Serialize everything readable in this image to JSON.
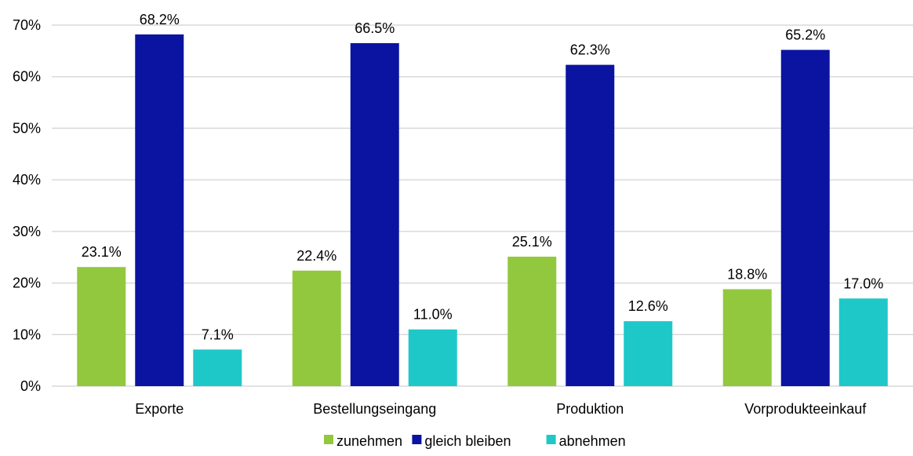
{
  "chart_data": {
    "type": "bar",
    "categories": [
      "Exporte",
      "Bestellungseingang",
      "Produktion",
      "Vorprodukteeinkauf"
    ],
    "series": [
      {
        "name": "zunehmen",
        "color": "#92c83e",
        "values": [
          23.1,
          22.4,
          25.1,
          18.8
        ],
        "labels": [
          "23.1%",
          "22.4%",
          "25.1%",
          "18.8%"
        ]
      },
      {
        "name": "gleich bleiben",
        "color": "#0a14a0",
        "values": [
          68.2,
          66.5,
          62.3,
          65.2
        ],
        "labels": [
          "68.2%",
          "66.5%",
          "62.3%",
          "65.2%"
        ]
      },
      {
        "name": "abnehmen",
        "color": "#1ec8c8",
        "values": [
          7.1,
          11.0,
          12.6,
          17.0
        ],
        "labels": [
          "7.1%",
          "11.0%",
          "12.6%",
          "17.0%"
        ]
      }
    ],
    "ylim": [
      0,
      70
    ],
    "yticks": [
      0,
      10,
      20,
      30,
      40,
      50,
      60,
      70
    ],
    "ytick_labels": [
      "0%",
      "10%",
      "20%",
      "30%",
      "40%",
      "50%",
      "60%",
      "70%"
    ],
    "grid": true,
    "legend_position": "bottom-center"
  }
}
